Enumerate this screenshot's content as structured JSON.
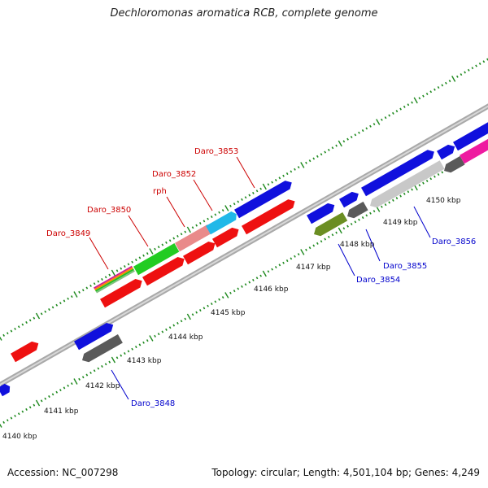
{
  "title": "Dechloromonas aromatica RCB, complete genome",
  "footer": {
    "accession": "Accession: NC_007298",
    "summary": "Topology: circular; Length: 4,501,104 bp; Genes: 4,249"
  },
  "colors": {
    "backbone": "#8a8a8a",
    "tick": "#1f8a1f",
    "label_red": "#cc0000",
    "label_blue": "#0000cc"
  },
  "kbp_labels": [
    "4140 kbp",
    "4141 kbp",
    "4142 kbp",
    "4143 kbp",
    "4144 kbp",
    "4145 kbp",
    "4146 kbp",
    "4147 kbp",
    "4148 kbp",
    "4149 kbp",
    "4150 kbp"
  ],
  "gene_labels": {
    "Daro_3853": "Daro_3853",
    "Daro_3852": "Daro_3852",
    "rph": "rph",
    "Daro_3850": "Daro_3850",
    "Daro_3849": "Daro_3849",
    "Daro_3848": "Daro_3848",
    "Daro_3854": "Daro_3854",
    "Daro_3855": "Daro_3855",
    "Daro_3856": "Daro_3856"
  }
}
